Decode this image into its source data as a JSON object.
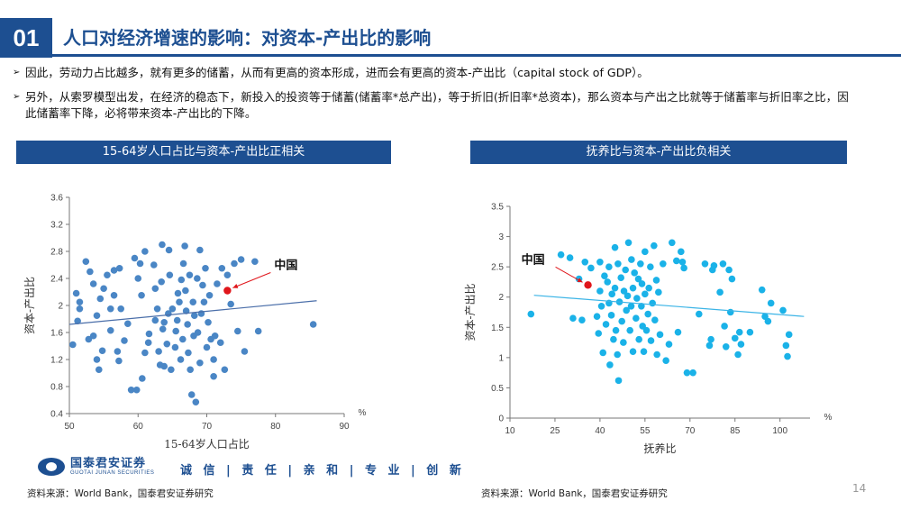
{
  "header": {
    "number": "01",
    "title": "人口对经济增速的影响：对资本-产出比的影响"
  },
  "bullets": [
    "因此，劳动力占比越多，就有更多的储蓄，从而有更高的资本形成，进而会有更高的资本-产出比（capital stock of GDP）。",
    "另外，从索罗模型出发，在经济的稳态下，新投入的投资等于储蓄(储蓄率*总产出)，等于折旧(折旧率*总资本)，那么资本与产出之比就等于储蓄率与折旧率之比，因此储蓄率下降，必将带来资本-产出比的下降。"
  ],
  "footer": {
    "logo_cn": "国泰君安证券",
    "logo_en": "GUOTAI JUNAN SECURITIES",
    "slogan": "诚 信 | 责 任 | 亲 和 | 专 业 | 创 新",
    "source_left": "资料来源：World Bank，国泰君安证券研究",
    "source_right": "资料来源：World Bank，国泰君安证券研究",
    "page": "14"
  },
  "colors": {
    "brand": "#1d4f91",
    "left_points": "#4a86c5",
    "right_points": "#1ab2e8",
    "highlight": "#e0161b",
    "left_trend": "#4a6ea9",
    "right_trend": "#3bb4e6"
  },
  "chart_data": [
    {
      "type": "scatter",
      "title": "15-64岁人口占比与资本-产出比正相关",
      "xlabel": "15-64岁人口占比",
      "ylabel": "资本-产出比",
      "x_unit": "%",
      "xlim": [
        50,
        90
      ],
      "ylim": [
        0.4,
        3.6
      ],
      "xticks": [
        "50",
        "60",
        "70",
        "80",
        "90"
      ],
      "yticks": [
        "0.4",
        "0.8",
        "1.2",
        "1.6",
        "2",
        "2.4",
        "2.8",
        "3.2",
        "3.6"
      ],
      "annotation": "中国",
      "highlight_point": {
        "name": "中国",
        "x": 73,
        "y": 2.22
      },
      "trendline": [
        [
          50,
          1.72
        ],
        [
          86,
          2.07
        ]
      ],
      "points": [
        [
          50.5,
          1.42
        ],
        [
          51,
          2.18
        ],
        [
          51.5,
          1.95
        ],
        [
          51.5,
          2.05
        ],
        [
          51.2,
          1.77
        ],
        [
          52.4,
          2.65
        ],
        [
          52.8,
          1.5
        ],
        [
          53,
          2.5
        ],
        [
          53.5,
          2.32
        ],
        [
          53.5,
          1.55
        ],
        [
          54,
          1.2
        ],
        [
          54.3,
          1.05
        ],
        [
          54.5,
          2.1
        ],
        [
          54,
          1.85
        ],
        [
          54.8,
          1.33
        ],
        [
          55,
          2.25
        ],
        [
          55.5,
          2.45
        ],
        [
          56,
          1.63
        ],
        [
          56,
          1.95
        ],
        [
          56.5,
          2.15
        ],
        [
          56.5,
          2.52
        ],
        [
          57,
          1.32
        ],
        [
          57.2,
          1.18
        ],
        [
          57.3,
          2.55
        ],
        [
          57.5,
          1.95
        ],
        [
          58,
          1.48
        ],
        [
          58.5,
          1.73
        ],
        [
          59,
          0.75
        ],
        [
          59.5,
          2.7
        ],
        [
          59.8,
          0.75
        ],
        [
          60,
          2.4
        ],
        [
          60.3,
          2.62
        ],
        [
          60.5,
          2.15
        ],
        [
          60.6,
          0.92
        ],
        [
          61,
          2.8
        ],
        [
          61,
          1.3
        ],
        [
          61.5,
          1.45
        ],
        [
          61.6,
          1.58
        ],
        [
          62.3,
          2.6
        ],
        [
          62.5,
          2.25
        ],
        [
          62.5,
          1.78
        ],
        [
          62.8,
          1.95
        ],
        [
          63,
          1.32
        ],
        [
          63.2,
          1.12
        ],
        [
          63.4,
          2.35
        ],
        [
          63.5,
          2.9
        ],
        [
          63.6,
          1.65
        ],
        [
          63.8,
          1.75
        ],
        [
          63.8,
          1.1
        ],
        [
          64.2,
          1.43
        ],
        [
          64.5,
          2.82
        ],
        [
          64.4,
          1.88
        ],
        [
          64.6,
          2.45
        ],
        [
          64.8,
          1.05
        ],
        [
          65,
          1.95
        ],
        [
          65.5,
          1.62
        ],
        [
          65.4,
          1.38
        ],
        [
          65.7,
          1.78
        ],
        [
          66,
          2.05
        ],
        [
          65.8,
          2.18
        ],
        [
          66.3,
          2.38
        ],
        [
          66.2,
          1.2
        ],
        [
          66.5,
          1.5
        ],
        [
          66.6,
          2.62
        ],
        [
          66.8,
          2.88
        ],
        [
          66.9,
          2.22
        ],
        [
          67,
          1.92
        ],
        [
          67.2,
          1.72
        ],
        [
          67.3,
          1.3
        ],
        [
          67.5,
          2.45
        ],
        [
          67.6,
          1.05
        ],
        [
          67.8,
          0.68
        ],
        [
          68,
          2.05
        ],
        [
          68.1,
          1.55
        ],
        [
          68.2,
          1.85
        ],
        [
          68.4,
          0.57
        ],
        [
          68.6,
          2.4
        ],
        [
          68.7,
          1.6
        ],
        [
          69,
          2.82
        ],
        [
          69,
          1.15
        ],
        [
          69.4,
          2.3
        ],
        [
          69.2,
          1.88
        ],
        [
          69.6,
          2.05
        ],
        [
          69.8,
          2.55
        ],
        [
          70,
          1.38
        ],
        [
          70.2,
          1.75
        ],
        [
          70.4,
          2.15
        ],
        [
          70.6,
          1.5
        ],
        [
          71,
          0.95
        ],
        [
          71,
          1.2
        ],
        [
          71.5,
          2.32
        ],
        [
          71.2,
          1.55
        ],
        [
          72,
          1.45
        ],
        [
          72.2,
          2.55
        ],
        [
          72.6,
          1.05
        ],
        [
          73,
          2.45
        ],
        [
          73.5,
          2.02
        ],
        [
          74,
          2.62
        ],
        [
          74.5,
          1.62
        ],
        [
          75,
          2.68
        ],
        [
          75.5,
          1.32
        ],
        [
          77,
          2.65
        ],
        [
          77.5,
          1.62
        ],
        [
          85.5,
          1.72
        ]
      ]
    },
    {
      "type": "scatter",
      "title": "抚养比与资本-产出比负相关",
      "xlabel": "抚养比",
      "ylabel": "资本-产出比",
      "x_unit": "%",
      "xlim": [
        10,
        110
      ],
      "ylim": [
        0,
        3.5
      ],
      "xticks": [
        "10",
        "25",
        "40",
        "55",
        "70",
        "85",
        "100"
      ],
      "yticks": [
        "0",
        "0.5",
        "1",
        "1.5",
        "2",
        "2.5",
        "3",
        "3.5"
      ],
      "annotation": "中国",
      "highlight_point": {
        "name": "中国",
        "x": 36,
        "y": 2.2
      },
      "trendline": [
        [
          18,
          2.03
        ],
        [
          108,
          1.68
        ]
      ],
      "points": [
        [
          17,
          1.72
        ],
        [
          27,
          2.7
        ],
        [
          30,
          2.65
        ],
        [
          31,
          1.65
        ],
        [
          33,
          2.3
        ],
        [
          34,
          1.62
        ],
        [
          35,
          2.58
        ],
        [
          37,
          2.48
        ],
        [
          39,
          1.68
        ],
        [
          39.5,
          1.4
        ],
        [
          40,
          2.58
        ],
        [
          40,
          2.1
        ],
        [
          40.5,
          1.85
        ],
        [
          41,
          1.08
        ],
        [
          41.5,
          2.35
        ],
        [
          42,
          1.55
        ],
        [
          42.5,
          2.25
        ],
        [
          43,
          1.9
        ],
        [
          43,
          2.5
        ],
        [
          43.3,
          0.88
        ],
        [
          43.8,
          1.7
        ],
        [
          44,
          2.05
        ],
        [
          44.5,
          1.3
        ],
        [
          45,
          2.15
        ],
        [
          45,
          2.82
        ],
        [
          45.3,
          1.45
        ],
        [
          45.8,
          1.05
        ],
        [
          46,
          2.55
        ],
        [
          46.2,
          0.62
        ],
        [
          46.5,
          1.92
        ],
        [
          47,
          2.32
        ],
        [
          47.3,
          1.6
        ],
        [
          47.8,
          1.25
        ],
        [
          48,
          2.1
        ],
        [
          48.5,
          2.45
        ],
        [
          48.8,
          1.78
        ],
        [
          49.5,
          2.9
        ],
        [
          49.2,
          2.02
        ],
        [
          50,
          1.45
        ],
        [
          50.4,
          1.85
        ],
        [
          50.5,
          2.62
        ],
        [
          51,
          2.15
        ],
        [
          51,
          1.1
        ],
        [
          51.5,
          2.4
        ],
        [
          52,
          1.65
        ],
        [
          52.3,
          1.98
        ],
        [
          52.8,
          2.3
        ],
        [
          53,
          1.3
        ],
        [
          53.5,
          2.55
        ],
        [
          53.8,
          1.85
        ],
        [
          54,
          2.22
        ],
        [
          54.2,
          1.52
        ],
        [
          54.6,
          1.1
        ],
        [
          55,
          2.75
        ],
        [
          55,
          2.05
        ],
        [
          55.5,
          1.45
        ],
        [
          56,
          1.72
        ],
        [
          56.3,
          2.15
        ],
        [
          56.8,
          2.5
        ],
        [
          57,
          1.28
        ],
        [
          57.5,
          1.9
        ],
        [
          58,
          2.85
        ],
        [
          58.3,
          1.62
        ],
        [
          58.8,
          2.28
        ],
        [
          59,
          1.05
        ],
        [
          59.5,
          2.08
        ],
        [
          60,
          1.38
        ],
        [
          61,
          2.55
        ],
        [
          62,
          0.95
        ],
        [
          63,
          1.22
        ],
        [
          64,
          2.9
        ],
        [
          65.5,
          2.6
        ],
        [
          66,
          1.42
        ],
        [
          67,
          2.75
        ],
        [
          67.5,
          2.58
        ],
        [
          68,
          2.48
        ],
        [
          69,
          0.75
        ],
        [
          71,
          0.75
        ],
        [
          73,
          1.72
        ],
        [
          75,
          2.55
        ],
        [
          76.5,
          1.2
        ],
        [
          77,
          1.3
        ],
        [
          77.5,
          2.45
        ],
        [
          78,
          2.52
        ],
        [
          80,
          2.08
        ],
        [
          81,
          2.55
        ],
        [
          81.5,
          1.52
        ],
        [
          82,
          1.18
        ],
        [
          83,
          2.45
        ],
        [
          83.5,
          1.75
        ],
        [
          84,
          2.3
        ],
        [
          85,
          1.32
        ],
        [
          86,
          1.05
        ],
        [
          86.5,
          1.42
        ],
        [
          87,
          1.22
        ],
        [
          90,
          1.42
        ],
        [
          94,
          2.12
        ],
        [
          95,
          1.68
        ],
        [
          96,
          1.6
        ],
        [
          97,
          1.9
        ],
        [
          101,
          1.78
        ],
        [
          102,
          1.2
        ],
        [
          102.5,
          1.02
        ],
        [
          103,
          1.38
        ]
      ]
    }
  ]
}
